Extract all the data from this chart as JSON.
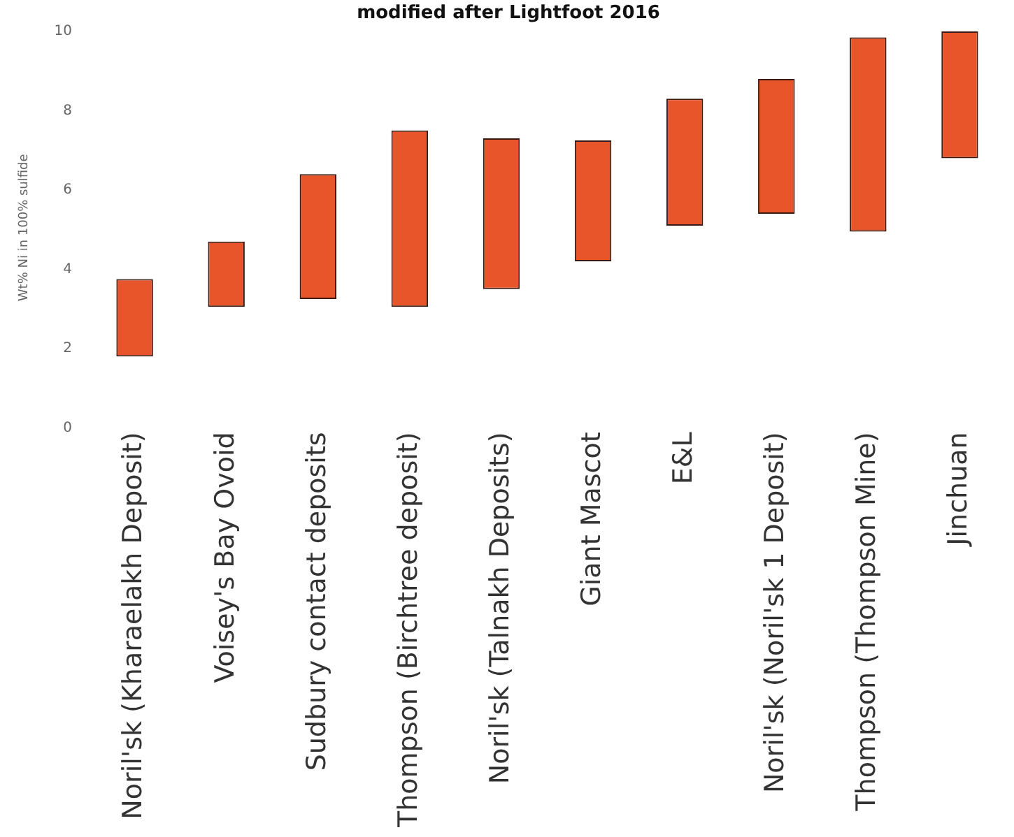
{
  "chart_data": {
    "type": "bar",
    "title": "modified after Lightfoot 2016",
    "ylabel": "Wt% Ni in 100% sulfide",
    "categories": [
      "Noril'sk (Kharaelakh Deposit)",
      "Voisey's Bay Ovoid",
      "Sudbury contact deposits",
      "Thompson (Birchtree deposit)",
      "Noril'sk (Talnakh Deposits)",
      "Giant Mascot",
      "E&L",
      "Noril'sk (Noril'sk 1 Deposit)",
      "Thompson (Thompson Mine)",
      "Jinchuan"
    ],
    "base": [
      1.8,
      3.05,
      3.25,
      3.05,
      3.5,
      4.2,
      5.1,
      5.4,
      4.95,
      6.8
    ],
    "values": [
      1.95,
      1.65,
      3.15,
      4.45,
      3.8,
      3.05,
      3.2,
      3.4,
      4.9,
      3.2
    ],
    "color": "#e8552a",
    "ylim": [
      0,
      10.1
    ],
    "yticks": [
      0,
      2,
      4,
      6,
      8,
      10
    ],
    "grid": false,
    "legend": false
  }
}
